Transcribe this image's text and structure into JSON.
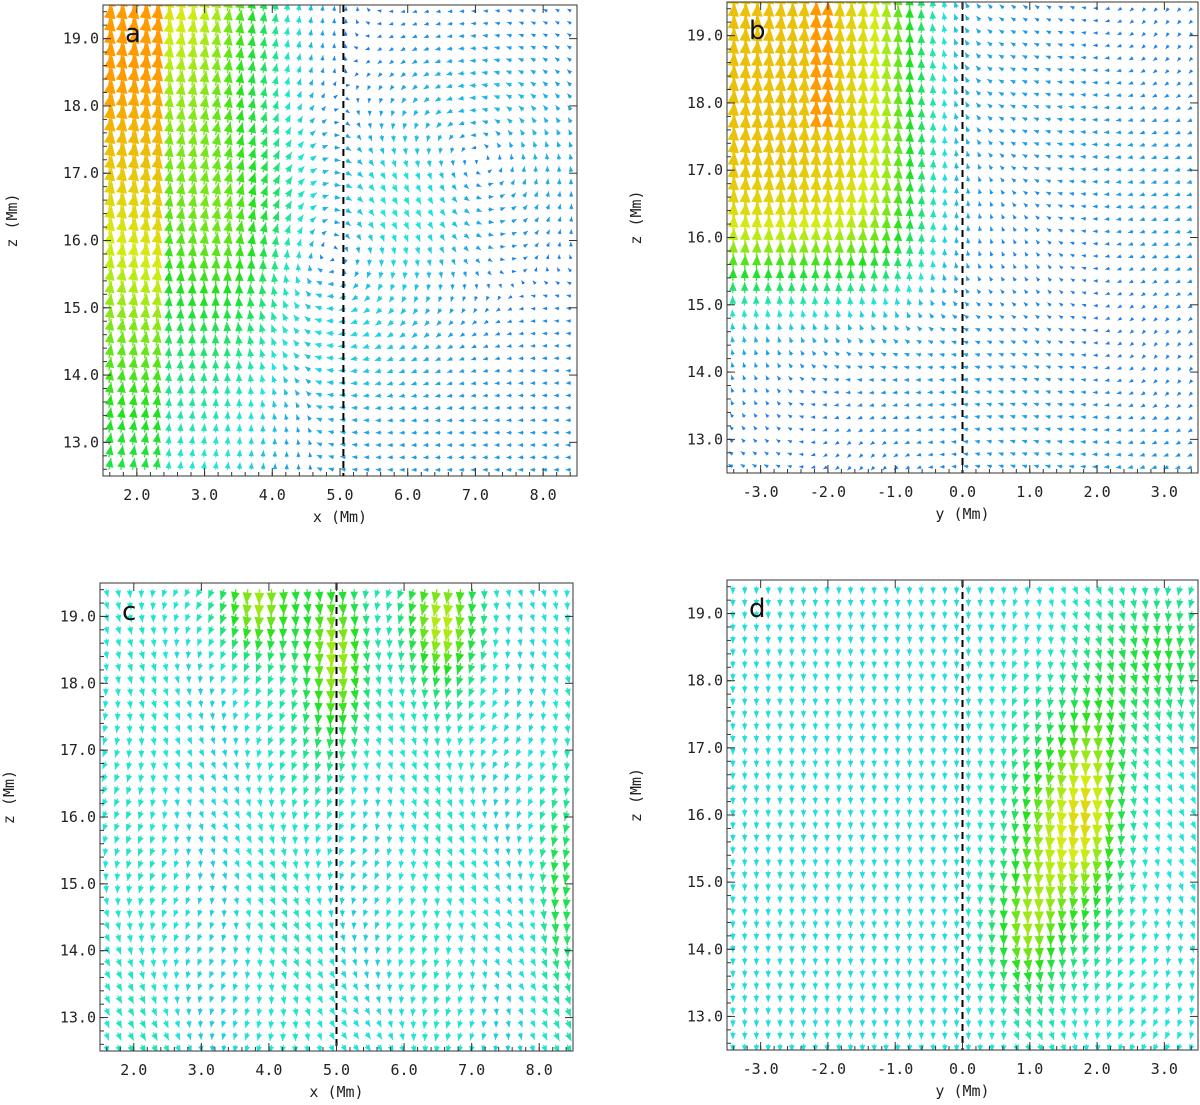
{
  "chart_data": [
    {
      "type": "vector_field",
      "panel": "a",
      "xlabel": "x (Mm)",
      "ylabel": "z (Mm)",
      "xlim": [
        1.5,
        8.5
      ],
      "ylim": [
        12.5,
        19.5
      ],
      "xticks": [
        "2.0",
        "3.0",
        "4.0",
        "5.0",
        "6.0",
        "7.0",
        "8.0"
      ],
      "yticks": [
        "13.0",
        "14.0",
        "15.0",
        "16.0",
        "17.0",
        "18.0",
        "19.0"
      ],
      "reference_line_x": 5.05,
      "flow": "strong upflow (green-yellow) for x < 4.5 Mm; weak clockwise vortex near x≈4.5, z≈15.7 and counter-clockwise swirl near x≈7, z≈17; weak leftward flow in lower right"
    },
    {
      "type": "vector_field",
      "panel": "b",
      "xlabel": "y (Mm)",
      "ylabel": "z (Mm)",
      "xlim": [
        -3.5,
        3.5
      ],
      "ylim": [
        12.5,
        19.5
      ],
      "xticks": [
        "-3.0",
        "-2.0",
        "-1.0",
        "0.0",
        "1.0",
        "2.0",
        "3.0"
      ],
      "yticks": [
        "13.0",
        "14.0",
        "15.0",
        "16.0",
        "17.0",
        "18.0",
        "19.0"
      ],
      "reference_line_x": 0.0,
      "flow": "strong upflow (green-yellow) for y < -0.5 Mm above z≈15; weak horizontal flow elsewhere"
    },
    {
      "type": "vector_field",
      "panel": "c",
      "xlabel": "x (Mm)",
      "ylabel": "z (Mm)",
      "xlim": [
        1.5,
        8.5
      ],
      "ylim": [
        12.5,
        19.5
      ],
      "xticks": [
        "2.0",
        "3.0",
        "4.0",
        "5.0",
        "6.0",
        "7.0",
        "8.0"
      ],
      "yticks": [
        "13.0",
        "14.0",
        "15.0",
        "16.0",
        "17.0",
        "18.0",
        "19.0"
      ],
      "reference_line_x": 5.0,
      "flow": "predominantly downflow; stronger green downflow near the top around x≈4 and x≈6.5"
    },
    {
      "type": "vector_field",
      "panel": "d",
      "xlabel": "y (Mm)",
      "ylabel": "z (Mm)",
      "xlim": [
        -3.5,
        3.5
      ],
      "ylim": [
        12.5,
        19.5
      ],
      "xticks": [
        "-3.0",
        "-2.0",
        "-1.0",
        "0.0",
        "1.0",
        "2.0",
        "3.0"
      ],
      "yticks": [
        "13.0",
        "14.0",
        "15.0",
        "16.0",
        "17.0",
        "18.0",
        "19.0"
      ],
      "reference_line_x": 0.0,
      "flow": "uniform weak downflow; stronger green downflow for y > 1 Mm"
    }
  ],
  "colors": {
    "weak": "#1e6fe6",
    "mid": "#21e5dc",
    "strong": "#22e01e",
    "stronger": "#d4ec14",
    "strongest": "#ff9a00"
  }
}
